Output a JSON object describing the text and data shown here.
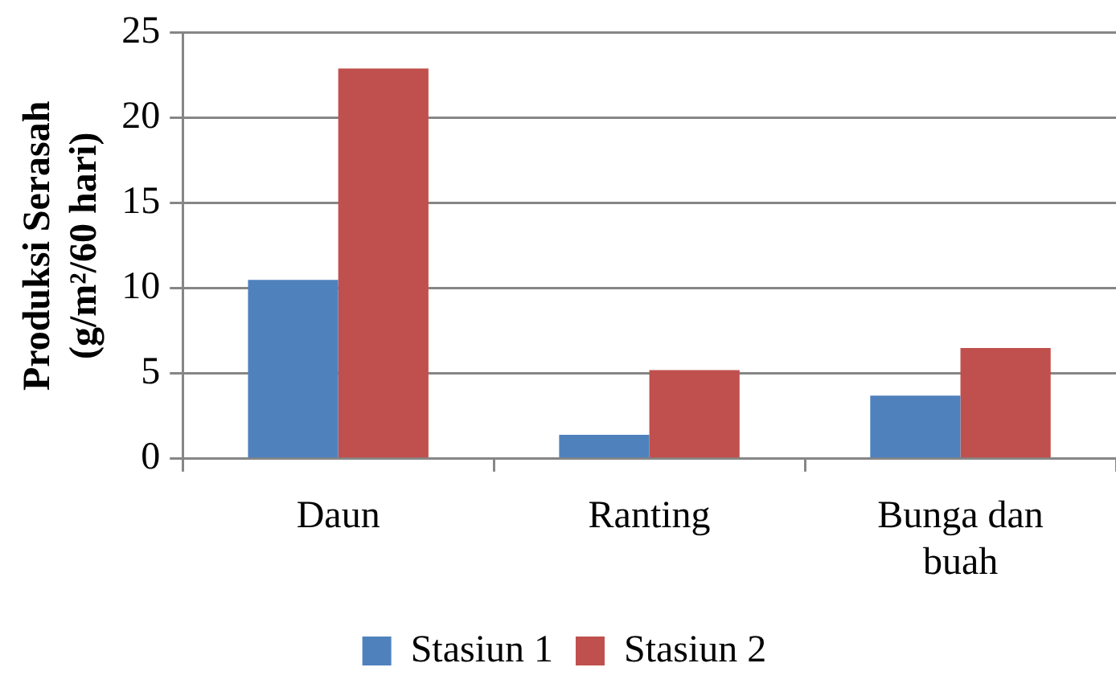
{
  "chart_data": {
    "type": "bar",
    "ylabel": "Produksi Serasah (g/m²/60 hari)",
    "categories": [
      "Daun",
      "Ranting",
      "Bunga dan buah"
    ],
    "series": [
      {
        "name": "Stasiun 1",
        "color": "#4f81bd",
        "values": [
          10.5,
          1.4,
          3.7
        ]
      },
      {
        "name": "Stasiun 2",
        "color": "#c0504d",
        "values": [
          22.9,
          5.2,
          6.5
        ]
      }
    ],
    "ylim": [
      0,
      25
    ],
    "yticks": [
      0,
      5,
      10,
      15,
      20,
      25
    ],
    "grid": "y",
    "legend": "bottom"
  }
}
